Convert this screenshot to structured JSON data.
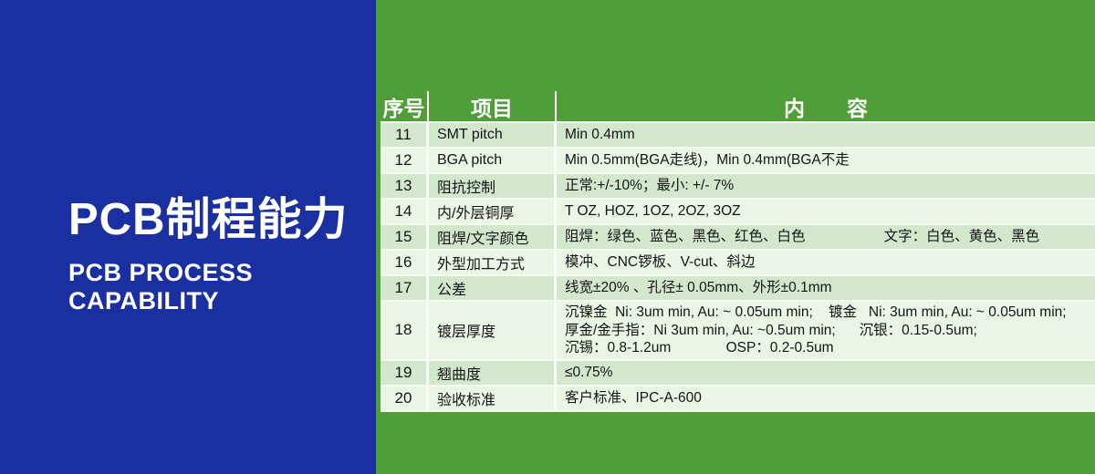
{
  "left_panel": {
    "title": "PCB制程能力",
    "subtitle_line1": "PCB PROCESS",
    "subtitle_line2": "CAPABILITY"
  },
  "table": {
    "headers": {
      "no": "序号",
      "item": "项目",
      "content": "内　　容"
    },
    "rows": [
      {
        "no": "11",
        "item": "SMT pitch",
        "content": [
          "Min 0.4mm"
        ]
      },
      {
        "no": "12",
        "item": "BGA pitch",
        "content": [
          "Min 0.5mm(BGA走线)，Min 0.4mm(BGA不走"
        ]
      },
      {
        "no": "13",
        "item": "阻抗控制",
        "content": [
          "正常:+/-10%；最小: +/- 7%"
        ]
      },
      {
        "no": "14",
        "item": "内/外层铜厚",
        "content": [
          "T OZ, HOZ, 1OZ, 2OZ, 3OZ"
        ]
      },
      {
        "no": "15",
        "item": "阻焊/文字颜色",
        "content": [
          "阻焊：绿色、蓝色、黑色、红色、白色                    文字：白色、黄色、黑色"
        ]
      },
      {
        "no": "16",
        "item": "外型加工方式",
        "content": [
          "模冲、CNC锣板、V-cut、斜边"
        ]
      },
      {
        "no": "17",
        "item": "公差",
        "content": [
          "线宽±20% 、孔径± 0.05mm、外形±0.1mm"
        ]
      },
      {
        "no": "18",
        "item": "镀层厚度",
        "content": [
          "沉镍金  Ni: 3um min, Au: ~ 0.05um min;    镀金   Ni: 3um min, Au: ~ 0.05um min;",
          "厚金/金手指：Ni 3um min, Au: ~0.5um min;      沉银：0.15-0.5um;",
          "沉锡：0.8-1.2um              OSP：0.2-0.5um"
        ]
      },
      {
        "no": "19",
        "item": "翘曲度",
        "content": [
          "≤0.75%"
        ]
      },
      {
        "no": "20",
        "item": "验收标准",
        "content": [
          "客户标准、IPC-A-600"
        ]
      }
    ]
  },
  "colors": {
    "panel_blue": "#1a30a1",
    "panel_green": "#4f9e38",
    "row_dark": "#d3e7cd",
    "row_light": "#eaf5e6"
  }
}
